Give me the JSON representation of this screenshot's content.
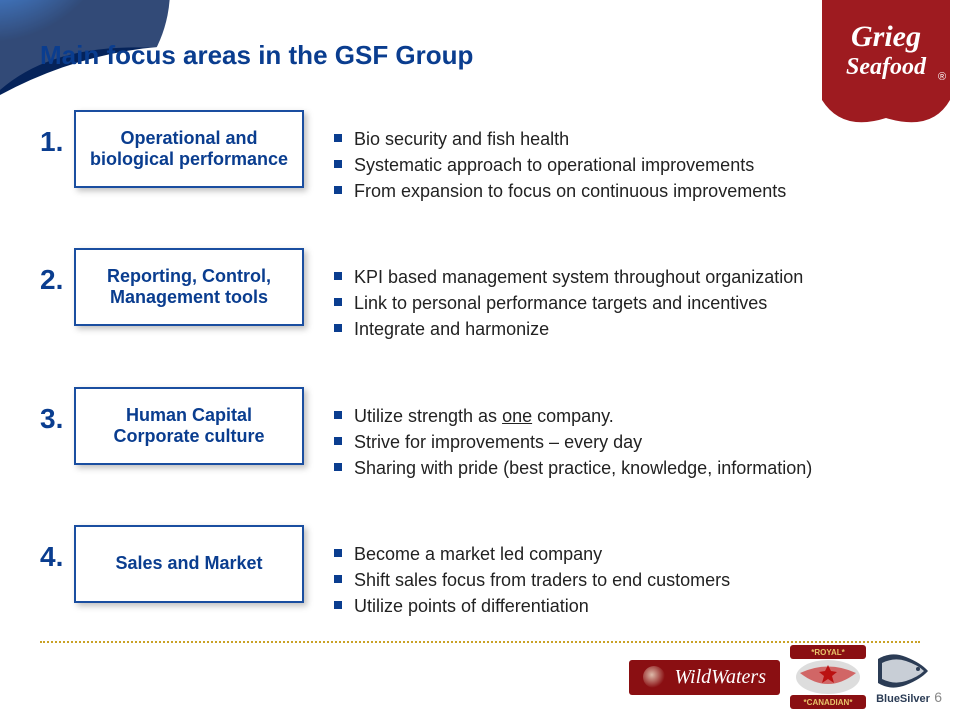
{
  "slide": {
    "title": "Main focus areas in the GSF Group",
    "title_color": "#0a3d8f",
    "background_color": "#ffffff",
    "page_number": "6"
  },
  "logo": {
    "top_line": "Grieg",
    "bottom_line": "Seafood",
    "ribbon_color": "#9e1b20",
    "text_color": "#ffffff"
  },
  "rows": [
    {
      "number": "1.",
      "box_label": "Operational and biological performance",
      "bullets": [
        "Bio security and fish health",
        "Systematic approach to operational improvements",
        "From expansion to focus on continuous improvements"
      ]
    },
    {
      "number": "2.",
      "box_label": "Reporting, Control, Management tools",
      "bullets": [
        "KPI based management system throughout organization",
        "Link to personal performance targets and incentives",
        "Integrate and harmonize"
      ]
    },
    {
      "number": "3.",
      "box_label": "Human Capital Corporate culture",
      "bullets": [
        {
          "html": "Utilize strength as <span class=\"underline\">one</span> company."
        },
        "Strive for improvements – every day",
        "Sharing with pride (best practice, knowledge, information)"
      ]
    },
    {
      "number": "4.",
      "box_label": "Sales and Market",
      "bullets": [
        "Become a market led company",
        "Shift sales focus from traders to end customers",
        "Utilize points of differentiation"
      ]
    }
  ],
  "divider": {
    "color": "#c9a227",
    "style": "dotted"
  },
  "footer": {
    "wildwaters_label": "WildWaters",
    "wildwaters_bg": "#8a0f12",
    "canadian_top": "*ROYAL*",
    "canadian_bottom": "*CANADIAN*",
    "bluesilver_label": "BlueSilver",
    "bluesilver_blue": "#2b3c55",
    "bluesilver_silver": "#c8ced6"
  },
  "bg_art": {
    "globe_blue": "#0a4aa8",
    "globe_light": "#6fb0f2",
    "swoosh": "#013a85"
  }
}
